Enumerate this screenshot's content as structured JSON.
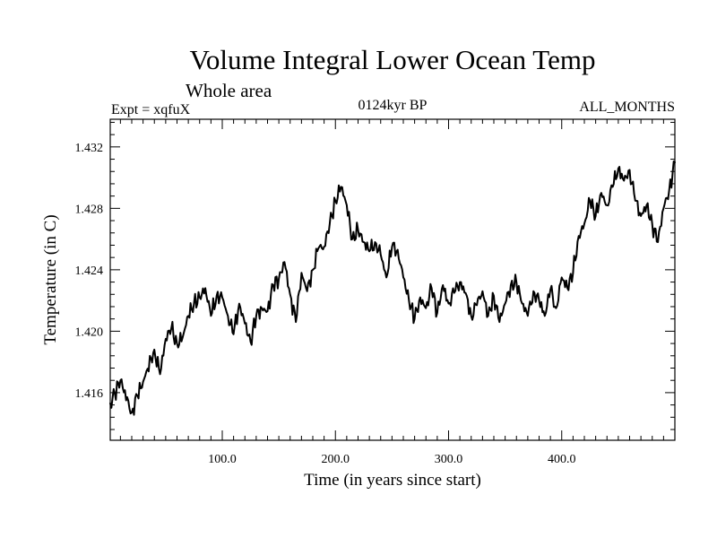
{
  "chart_data": {
    "type": "line",
    "title": "Volume Integral Lower Ocean Temp",
    "subtitle": "Whole area",
    "left_label": "Expt = xqfuX",
    "center_label": "0124kyr BP",
    "right_label": "ALL_MONTHS",
    "xlabel": "Time (in years since start)",
    "ylabel": "Temperature (in C)",
    "xlim": [
      1,
      500
    ],
    "ylim": [
      1.4129,
      1.4338
    ],
    "xticks": [
      100,
      200,
      300,
      400
    ],
    "xtick_labels": [
      "100.0",
      "200.0",
      "300.0",
      "400.0"
    ],
    "yticks": [
      1.416,
      1.42,
      1.424,
      1.428,
      1.432
    ],
    "ytick_labels": [
      "1.416",
      "1.420",
      "1.424",
      "1.428",
      "1.432"
    ],
    "series": [
      {
        "name": "Temperature",
        "x": [
          1,
          10,
          20,
          25,
          30,
          40,
          45,
          50,
          55,
          60,
          65,
          70,
          75,
          80,
          85,
          90,
          95,
          100,
          105,
          110,
          115,
          120,
          125,
          130,
          135,
          140,
          145,
          150,
          155,
          160,
          165,
          170,
          175,
          180,
          185,
          190,
          195,
          200,
          205,
          210,
          215,
          220,
          225,
          230,
          235,
          240,
          245,
          250,
          255,
          260,
          265,
          270,
          275,
          280,
          285,
          290,
          295,
          300,
          305,
          310,
          315,
          320,
          325,
          330,
          335,
          340,
          345,
          350,
          355,
          360,
          365,
          370,
          375,
          380,
          385,
          390,
          395,
          400,
          405,
          410,
          415,
          420,
          425,
          430,
          435,
          440,
          445,
          450,
          455,
          460,
          465,
          470,
          475,
          480,
          485,
          490,
          495,
          500
        ],
        "y": [
          1.4153,
          1.4168,
          1.4147,
          1.4158,
          1.4167,
          1.4188,
          1.4172,
          1.4195,
          1.4202,
          1.4192,
          1.4196,
          1.421,
          1.4218,
          1.4222,
          1.4228,
          1.421,
          1.4223,
          1.4222,
          1.421,
          1.4198,
          1.4218,
          1.4205,
          1.4193,
          1.421,
          1.4215,
          1.4213,
          1.423,
          1.4234,
          1.4245,
          1.4224,
          1.4206,
          1.4238,
          1.4226,
          1.424,
          1.4254,
          1.4255,
          1.427,
          1.4285,
          1.4294,
          1.4282,
          1.426,
          1.4266,
          1.4258,
          1.4252,
          1.4258,
          1.425,
          1.4235,
          1.4255,
          1.4253,
          1.4235,
          1.422,
          1.4208,
          1.4222,
          1.4215,
          1.4228,
          1.4212,
          1.423,
          1.4218,
          1.4225,
          1.4232,
          1.4225,
          1.421,
          1.4217,
          1.4226,
          1.421,
          1.4223,
          1.4206,
          1.4218,
          1.423,
          1.4232,
          1.4218,
          1.421,
          1.4226,
          1.422,
          1.421,
          1.4227,
          1.4215,
          1.4235,
          1.4228,
          1.4238,
          1.4262,
          1.427,
          1.4285,
          1.4275,
          1.429,
          1.4282,
          1.4294,
          1.4306,
          1.4298,
          1.4305,
          1.4285,
          1.4275,
          1.4282,
          1.427,
          1.4258,
          1.428,
          1.4292,
          1.431
        ]
      }
    ]
  }
}
